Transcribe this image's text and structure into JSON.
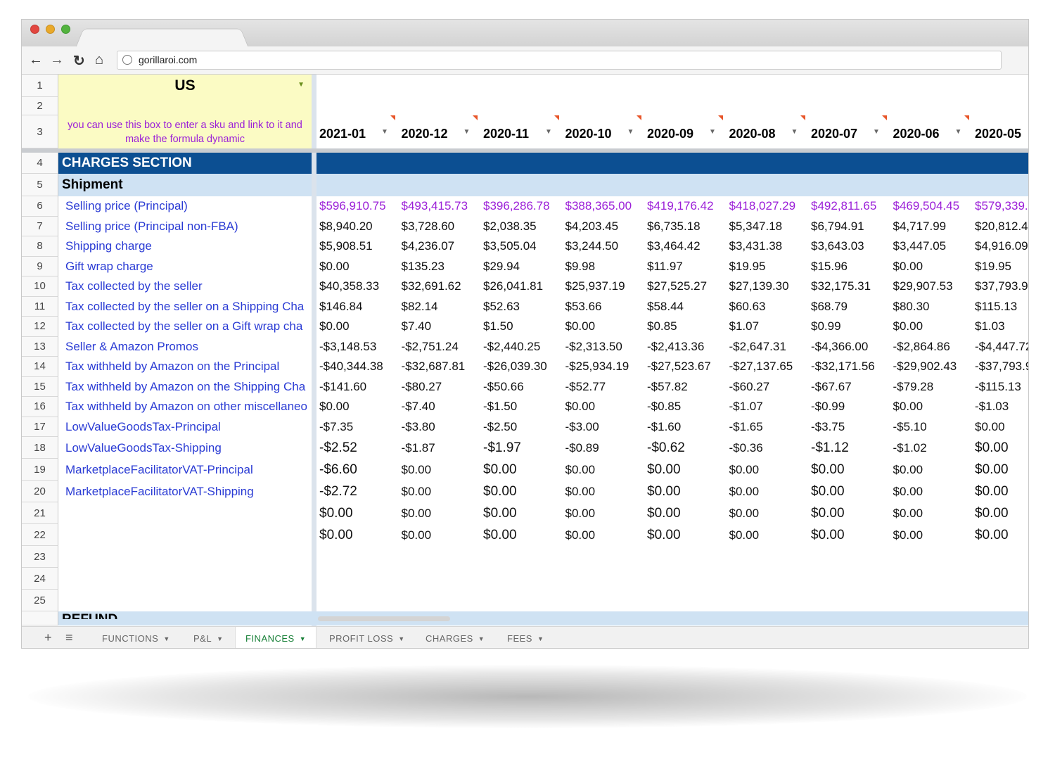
{
  "browser": {
    "url": "gorillaroi.com"
  },
  "sheet": {
    "row_numbers": [
      "1",
      "2",
      "3",
      "4",
      "5",
      "6",
      "7",
      "8",
      "9",
      "10",
      "11",
      "12",
      "13",
      "14",
      "15",
      "16",
      "17",
      "18",
      "19",
      "20",
      "21",
      "22",
      "23",
      "24",
      "25"
    ],
    "market": "US",
    "note": "you can use this box to enter a sku and link to it and make the formula dynamic",
    "months": [
      "2021-01",
      "2020-12",
      "2020-11",
      "2020-10",
      "2020-09",
      "2020-08",
      "2020-07",
      "2020-06",
      "2020-05"
    ],
    "section_title": "CHARGES SECTION",
    "subsection": "Shipment",
    "rows": [
      {
        "label": "Selling price (Principal)",
        "color": "#9b1fd8",
        "values": [
          "$596,910.75",
          "$493,415.73",
          "$396,286.78",
          "$388,365.00",
          "$419,176.42",
          "$418,027.29",
          "$492,811.65",
          "$469,504.45",
          "$579,339."
        ]
      },
      {
        "label": "Selling price (Principal non-FBA)",
        "values": [
          "$8,940.20",
          "$3,728.60",
          "$2,038.35",
          "$4,203.45",
          "$6,735.18",
          "$5,347.18",
          "$6,794.91",
          "$4,717.99",
          "$20,812.4"
        ]
      },
      {
        "label": "Shipping charge",
        "values": [
          "$5,908.51",
          "$4,236.07",
          "$3,505.04",
          "$3,244.50",
          "$3,464.42",
          "$3,431.38",
          "$3,643.03",
          "$3,447.05",
          "$4,916.09"
        ]
      },
      {
        "label": "Gift wrap charge",
        "values": [
          "$0.00",
          "$135.23",
          "$29.94",
          "$9.98",
          "$11.97",
          "$19.95",
          "$15.96",
          "$0.00",
          "$19.95"
        ]
      },
      {
        "label": "Tax collected by the seller",
        "values": [
          "$40,358.33",
          "$32,691.62",
          "$26,041.81",
          "$25,937.19",
          "$27,525.27",
          "$27,139.30",
          "$32,175.31",
          "$29,907.53",
          "$37,793.9"
        ]
      },
      {
        "label": "Tax collected by the seller on a Shipping Cha",
        "values": [
          "$146.84",
          "$82.14",
          "$52.63",
          "$53.66",
          "$58.44",
          "$60.63",
          "$68.79",
          "$80.30",
          "$115.13"
        ]
      },
      {
        "label": "Tax collected by the seller on a Gift wrap cha",
        "values": [
          "$0.00",
          "$7.40",
          "$1.50",
          "$0.00",
          "$0.85",
          "$1.07",
          "$0.99",
          "$0.00",
          "$1.03"
        ]
      },
      {
        "label": "Seller & Amazon Promos",
        "values": [
          "-$3,148.53",
          "-$2,751.24",
          "-$2,440.25",
          "-$2,313.50",
          "-$2,413.36",
          "-$2,647.31",
          "-$4,366.00",
          "-$2,864.86",
          "-$4,447.72"
        ]
      },
      {
        "label": "Tax withheld by Amazon on the Principal",
        "values": [
          "-$40,344.38",
          "-$32,687.81",
          "-$26,039.30",
          "-$25,934.19",
          "-$27,523.67",
          "-$27,137.65",
          "-$32,171.56",
          "-$29,902.43",
          "-$37,793.9"
        ]
      },
      {
        "label": "Tax withheld by Amazon on the Shipping Cha",
        "values": [
          "-$141.60",
          "-$80.27",
          "-$50.66",
          "-$52.77",
          "-$57.82",
          "-$60.27",
          "-$67.67",
          "-$79.28",
          "-$115.13"
        ]
      },
      {
        "label": "Tax withheld by Amazon on other miscellaneo",
        "values": [
          "$0.00",
          "-$7.40",
          "-$1.50",
          "$0.00",
          "-$0.85",
          "-$1.07",
          "-$0.99",
          "$0.00",
          "-$1.03"
        ]
      },
      {
        "label": "LowValueGoodsTax-Principal",
        "values": [
          "-$7.35",
          "-$3.80",
          "-$2.50",
          "-$3.00",
          "-$1.60",
          "-$1.65",
          "-$3.75",
          "-$5.10",
          "$0.00"
        ]
      },
      {
        "label": "LowValueGoodsTax-Shipping",
        "values": [
          "-$2.52",
          "-$1.87",
          "-$1.97",
          "-$0.89",
          "-$0.62",
          "-$0.36",
          "-$1.12",
          "-$1.02",
          "$0.00"
        ]
      },
      {
        "label": "MarketplaceFacilitatorVAT-Principal",
        "values": [
          "-$6.60",
          "$0.00",
          "$0.00",
          "$0.00",
          "$0.00",
          "$0.00",
          "$0.00",
          "$0.00",
          "$0.00"
        ]
      },
      {
        "label": "MarketplaceFacilitatorVAT-Shipping",
        "values": [
          "-$2.72",
          "$0.00",
          "$0.00",
          "$0.00",
          "$0.00",
          "$0.00",
          "$0.00",
          "$0.00",
          "$0.00"
        ]
      },
      {
        "values": [
          "$0.00",
          "$0.00",
          "$0.00",
          "$0.00",
          "$0.00",
          "$0.00",
          "$0.00",
          "$0.00",
          "$0.00"
        ]
      },
      {
        "values": [
          "$0.00",
          "$0.00",
          "$0.00",
          "$0.00",
          "$0.00",
          "$0.00",
          "$0.00",
          "$0.00",
          "$0.00"
        ]
      }
    ],
    "next_section": "REFUND"
  },
  "tabs": [
    "FUNCTIONS",
    "P&L",
    "FINANCES",
    "PROFIT LOSS",
    "CHARGES",
    "FEES"
  ],
  "active_tab": 2
}
